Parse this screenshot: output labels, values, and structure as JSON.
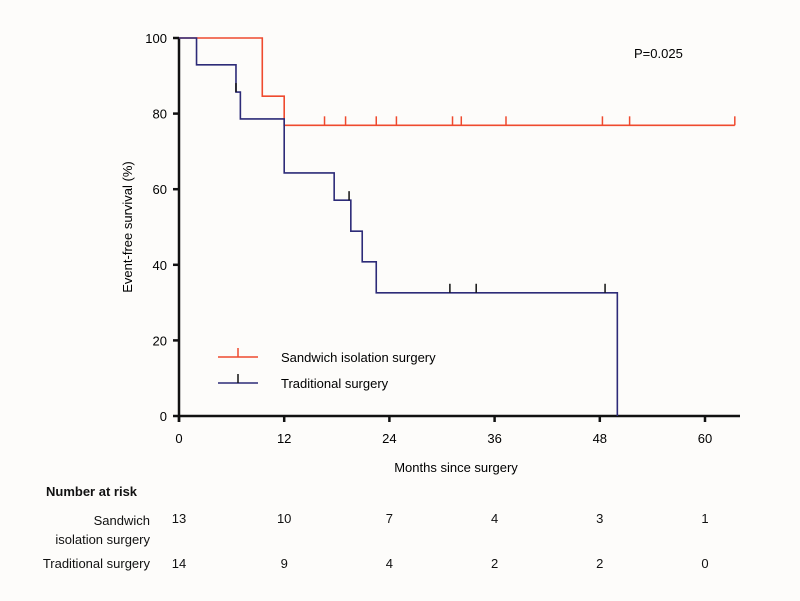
{
  "chart_data": {
    "type": "line",
    "subtype": "kaplan-meier",
    "xlabel": "Months since surgery",
    "ylabel": "Event-free survival (%)",
    "xlim": [
      0,
      60
    ],
    "ylim": [
      0,
      100
    ],
    "xticks": [
      0,
      12,
      24,
      36,
      48,
      60
    ],
    "yticks": [
      0,
      20,
      40,
      60,
      80,
      100
    ],
    "annotation": "P=0.025",
    "legend_position": "bottom-left",
    "series": [
      {
        "name": "Sandwich isolation surgery",
        "color": "#ef4a2e",
        "steps": [
          [
            0,
            100
          ],
          [
            9.5,
            84.6
          ],
          [
            12,
            76.9
          ],
          [
            63.4,
            76.9
          ]
        ],
        "censored": [
          16.6,
          19.0,
          22.5,
          24.8,
          31.2,
          32.2,
          37.3,
          48.3,
          51.4,
          63.4
        ]
      },
      {
        "name": "Traditional surgery",
        "color": "#2d2b78",
        "steps": [
          [
            0,
            100
          ],
          [
            2,
            92.9
          ],
          [
            6.5,
            85.7
          ],
          [
            7,
            78.6
          ],
          [
            12,
            64.3
          ],
          [
            17.7,
            57.1
          ],
          [
            19.6,
            48.9
          ],
          [
            20.9,
            40.8
          ],
          [
            22.5,
            32.6
          ],
          [
            50,
            0
          ]
        ],
        "censored": [
          6.5,
          19.4,
          30.9,
          33.9,
          48.6
        ]
      }
    ],
    "risk_table": {
      "title": "Number at risk",
      "times": [
        0,
        12,
        24,
        36,
        48,
        60
      ],
      "rows": [
        {
          "label_line1": "Sandwich",
          "label_line2": "isolation surgery",
          "values": [
            "13",
            "10",
            "7",
            "4",
            "3",
            "1"
          ]
        },
        {
          "label_line1": "Traditional surgery",
          "values": [
            "14",
            "9",
            "4",
            "2",
            "2",
            "0"
          ]
        }
      ]
    }
  }
}
